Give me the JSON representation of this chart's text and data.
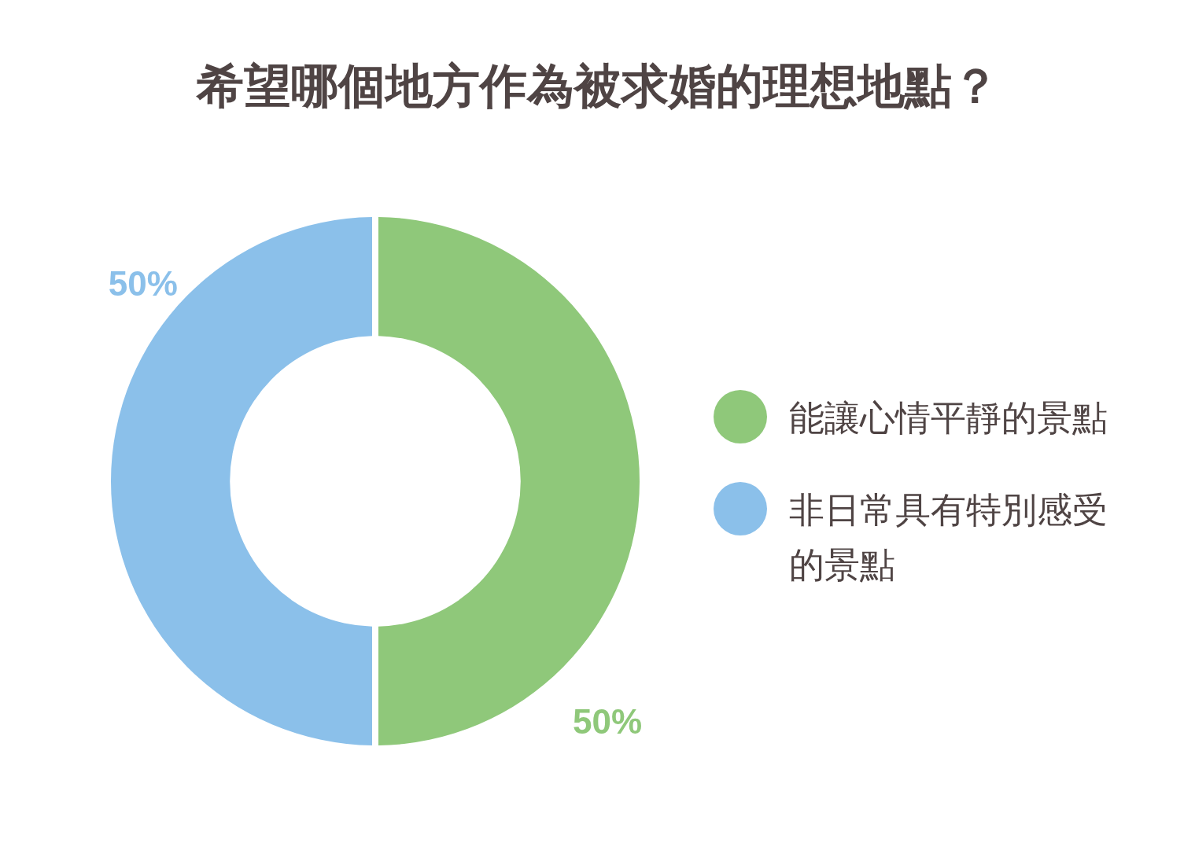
{
  "chart_data": {
    "type": "donut",
    "title": "希望哪個地方作為被求婚的理想地點？",
    "categories": [
      "能讓心情平靜的景點",
      "非日常具有特別感受的景點"
    ],
    "values": [
      50,
      50
    ],
    "colors": [
      "#8fc87a",
      "#8bc0ea"
    ],
    "value_labels": [
      "50%",
      "50%"
    ],
    "legend": "right"
  }
}
